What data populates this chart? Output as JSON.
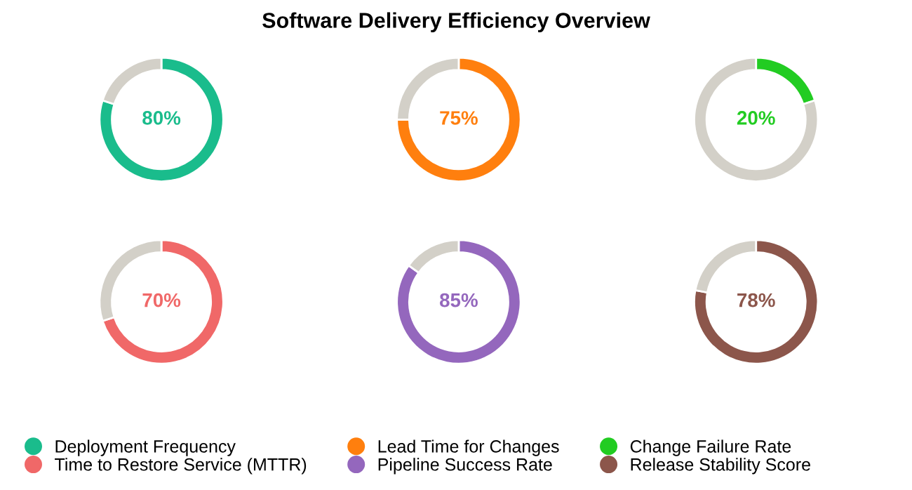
{
  "chart_data": [
    {
      "type": "donut",
      "categories": [
        "Deployment Frequency",
        null
      ],
      "values": [
        80,
        20
      ],
      "colors": [
        "#1abc8c",
        "#d3d0c8"
      ],
      "value_labels": [
        "80%",
        null
      ],
      "legend": "bottom"
    },
    {
      "type": "donut",
      "title": "Software Delivery Efficiency Overview",
      "categories": [
        "Lead Time for Changes",
        null
      ],
      "values": [
        75,
        25
      ],
      "colors": [
        "#ff7f0e",
        "#d3d0c8"
      ],
      "value_labels": [
        "75%",
        null
      ],
      "legend": "bottom"
    },
    {
      "type": "donut",
      "categories": [
        "Change Failure Rate",
        null
      ],
      "values": [
        20,
        80
      ],
      "colors": [
        "#22cc22",
        "#d3d0c8"
      ],
      "value_labels": [
        "20%",
        null
      ],
      "legend": "bottom"
    },
    {
      "type": "donut",
      "categories": [
        "Time to Restore Service (MTTR)",
        null
      ],
      "values": [
        70,
        30
      ],
      "colors": [
        "#f06868",
        "#d3d0c8"
      ],
      "value_labels": [
        "70%",
        null
      ],
      "legend": "bottom"
    },
    {
      "type": "donut",
      "categories": [
        "Pipeline Success Rate",
        null
      ],
      "values": [
        85,
        15
      ],
      "colors": [
        "#9467bd",
        "#d3d0c8"
      ],
      "value_labels": [
        "85%",
        null
      ],
      "legend": "bottom"
    },
    {
      "type": "donut",
      "categories": [
        "Release Stability Score",
        null
      ],
      "values": [
        78,
        22
      ],
      "colors": [
        "#8c564b",
        "#d3d0c8"
      ],
      "value_labels": [
        "78%",
        null
      ],
      "legend": "bottom"
    }
  ]
}
